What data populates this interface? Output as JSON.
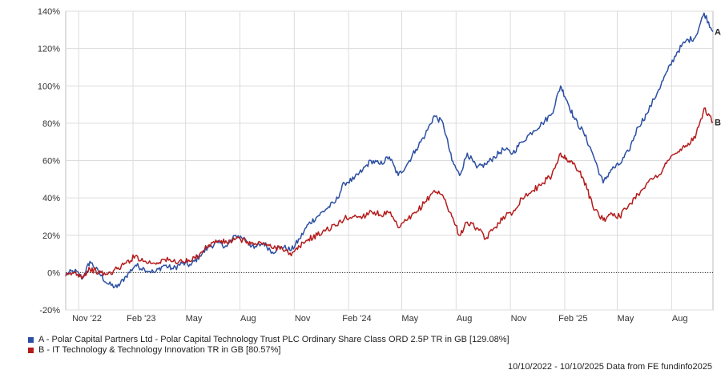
{
  "chart_data": {
    "type": "line",
    "x_ticks": [
      "Nov '22",
      "Feb '23",
      "May",
      "Aug",
      "Nov",
      "Feb '24",
      "May",
      "Aug",
      "Nov",
      "Feb '25",
      "May",
      "Aug"
    ],
    "y_ticks": [
      "140%",
      "120%",
      "100%",
      "80%",
      "60%",
      "40%",
      "20%",
      "0%",
      "-20%"
    ],
    "ylim": [
      -20,
      140
    ],
    "xlim": [
      "2022-10-10",
      "2025-10-10"
    ],
    "grid": true,
    "legend_position": "bottom-left",
    "series": [
      {
        "name": "A - Polar Capital Partners Ltd - Polar Capital Technology Trust PLC Ordinary Share Class ORD 2.5P TR in GB [129.08%]",
        "end_label": "A",
        "color": "#2b4fa2",
        "points": [
          [
            "2022-10-10",
            -1
          ],
          [
            "2022-10-25",
            1
          ],
          [
            "2022-11-08",
            -3
          ],
          [
            "2022-11-20",
            6
          ],
          [
            "2022-12-05",
            0
          ],
          [
            "2022-12-20",
            -6
          ],
          [
            "2023-01-05",
            -8
          ],
          [
            "2023-01-20",
            -2
          ],
          [
            "2023-02-05",
            4
          ],
          [
            "2023-02-20",
            2
          ],
          [
            "2023-03-10",
            0
          ],
          [
            "2023-03-25",
            4
          ],
          [
            "2023-04-10",
            2
          ],
          [
            "2023-04-25",
            5
          ],
          [
            "2023-05-10",
            4
          ],
          [
            "2023-05-25",
            9
          ],
          [
            "2023-06-10",
            14
          ],
          [
            "2023-06-25",
            16
          ],
          [
            "2023-07-10",
            14
          ],
          [
            "2023-07-25",
            20
          ],
          [
            "2023-08-10",
            18
          ],
          [
            "2023-08-25",
            13
          ],
          [
            "2023-09-10",
            16
          ],
          [
            "2023-09-25",
            11
          ],
          [
            "2023-10-10",
            14
          ],
          [
            "2023-10-27",
            12
          ],
          [
            "2023-11-10",
            18
          ],
          [
            "2023-11-25",
            26
          ],
          [
            "2023-12-10",
            30
          ],
          [
            "2023-12-25",
            34
          ],
          [
            "2024-01-10",
            38
          ],
          [
            "2024-01-25",
            48
          ],
          [
            "2024-02-10",
            50
          ],
          [
            "2024-02-25",
            55
          ],
          [
            "2024-03-10",
            60
          ],
          [
            "2024-03-25",
            58
          ],
          [
            "2024-04-10",
            62
          ],
          [
            "2024-04-25",
            52
          ],
          [
            "2024-05-10",
            58
          ],
          [
            "2024-05-25",
            66
          ],
          [
            "2024-06-10",
            74
          ],
          [
            "2024-06-25",
            84
          ],
          [
            "2024-07-10",
            80
          ],
          [
            "2024-07-25",
            60
          ],
          [
            "2024-08-07",
            52
          ],
          [
            "2024-08-20",
            64
          ],
          [
            "2024-09-05",
            56
          ],
          [
            "2024-09-20",
            58
          ],
          [
            "2024-10-05",
            62
          ],
          [
            "2024-10-20",
            66
          ],
          [
            "2024-11-05",
            64
          ],
          [
            "2024-11-20",
            70
          ],
          [
            "2024-12-10",
            76
          ],
          [
            "2024-12-25",
            80
          ],
          [
            "2025-01-10",
            85
          ],
          [
            "2025-01-25",
            100
          ],
          [
            "2025-02-05",
            92
          ],
          [
            "2025-02-18",
            82
          ],
          [
            "2025-03-05",
            75
          ],
          [
            "2025-03-20",
            64
          ],
          [
            "2025-04-07",
            48
          ],
          [
            "2025-04-20",
            55
          ],
          [
            "2025-05-05",
            58
          ],
          [
            "2025-05-20",
            65
          ],
          [
            "2025-06-05",
            78
          ],
          [
            "2025-06-20",
            85
          ],
          [
            "2025-07-10",
            98
          ],
          [
            "2025-07-25",
            108
          ],
          [
            "2025-08-10",
            118
          ],
          [
            "2025-08-25",
            124
          ],
          [
            "2025-09-10",
            126
          ],
          [
            "2025-09-25",
            139
          ],
          [
            "2025-10-10",
            129.08
          ]
        ]
      },
      {
        "name": "B - IT Technology & Technology Innovation TR in GB [80.57%]",
        "end_label": "B",
        "color": "#b51c1c",
        "points": [
          [
            "2022-10-10",
            -2
          ],
          [
            "2022-10-25",
            0
          ],
          [
            "2022-11-08",
            -2
          ],
          [
            "2022-11-20",
            2
          ],
          [
            "2022-12-05",
            0
          ],
          [
            "2022-12-20",
            -1
          ],
          [
            "2023-01-05",
            2
          ],
          [
            "2023-01-20",
            5
          ],
          [
            "2023-02-05",
            9
          ],
          [
            "2023-02-20",
            6
          ],
          [
            "2023-03-10",
            5
          ],
          [
            "2023-03-25",
            7
          ],
          [
            "2023-04-10",
            6
          ],
          [
            "2023-04-25",
            6
          ],
          [
            "2023-05-10",
            6
          ],
          [
            "2023-05-25",
            10
          ],
          [
            "2023-06-10",
            15
          ],
          [
            "2023-06-25",
            17
          ],
          [
            "2023-07-10",
            16
          ],
          [
            "2023-07-25",
            18
          ],
          [
            "2023-08-10",
            17
          ],
          [
            "2023-08-25",
            15
          ],
          [
            "2023-09-10",
            16
          ],
          [
            "2023-09-25",
            13
          ],
          [
            "2023-10-10",
            14
          ],
          [
            "2023-10-27",
            9
          ],
          [
            "2023-11-10",
            14
          ],
          [
            "2023-11-25",
            18
          ],
          [
            "2023-12-10",
            20
          ],
          [
            "2023-12-25",
            23
          ],
          [
            "2024-01-10",
            25
          ],
          [
            "2024-01-25",
            29
          ],
          [
            "2024-02-10",
            30
          ],
          [
            "2024-02-25",
            30
          ],
          [
            "2024-03-10",
            33
          ],
          [
            "2024-03-25",
            31
          ],
          [
            "2024-04-10",
            32
          ],
          [
            "2024-04-25",
            24
          ],
          [
            "2024-05-10",
            28
          ],
          [
            "2024-05-25",
            32
          ],
          [
            "2024-06-10",
            38
          ],
          [
            "2024-06-25",
            44
          ],
          [
            "2024-07-10",
            41
          ],
          [
            "2024-07-25",
            30
          ],
          [
            "2024-08-07",
            20
          ],
          [
            "2024-08-20",
            27
          ],
          [
            "2024-09-05",
            24
          ],
          [
            "2024-09-20",
            18
          ],
          [
            "2024-10-05",
            24
          ],
          [
            "2024-10-20",
            30
          ],
          [
            "2024-11-05",
            32
          ],
          [
            "2024-11-20",
            40
          ],
          [
            "2024-12-10",
            44
          ],
          [
            "2024-12-25",
            48
          ],
          [
            "2025-01-10",
            52
          ],
          [
            "2025-01-25",
            64
          ],
          [
            "2025-02-05",
            60
          ],
          [
            "2025-02-18",
            58
          ],
          [
            "2025-03-05",
            50
          ],
          [
            "2025-03-20",
            36
          ],
          [
            "2025-04-07",
            28
          ],
          [
            "2025-04-20",
            32
          ],
          [
            "2025-05-05",
            30
          ],
          [
            "2025-05-20",
            36
          ],
          [
            "2025-06-05",
            42
          ],
          [
            "2025-06-20",
            48
          ],
          [
            "2025-07-10",
            52
          ],
          [
            "2025-07-25",
            60
          ],
          [
            "2025-08-10",
            64
          ],
          [
            "2025-08-25",
            68
          ],
          [
            "2025-09-10",
            72
          ],
          [
            "2025-09-25",
            88
          ],
          [
            "2025-10-10",
            80.57
          ]
        ]
      }
    ]
  },
  "footer": "10/10/2022 - 10/10/2025 Data from FE fundinfo2025"
}
